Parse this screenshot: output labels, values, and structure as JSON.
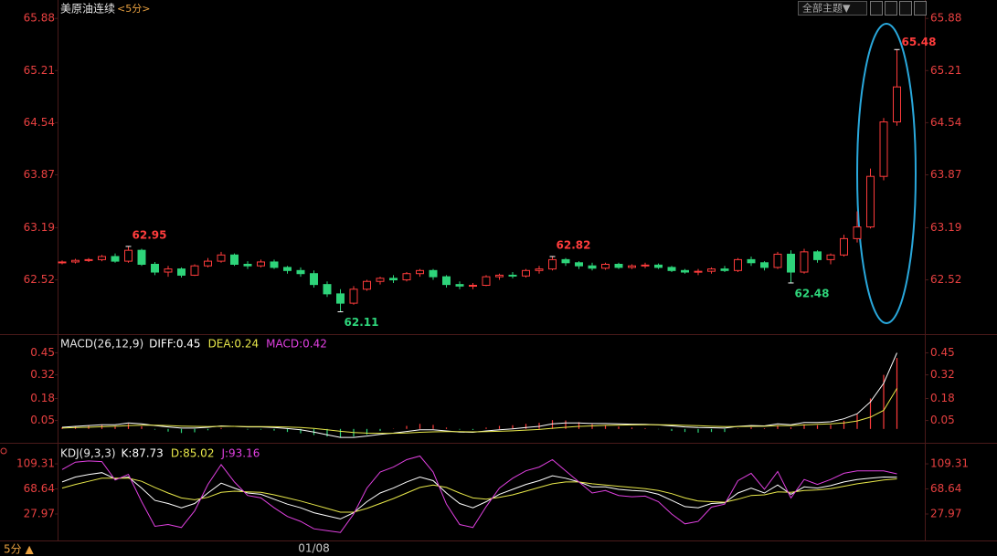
{
  "header": {
    "title": "美原油连续",
    "period": "<5分>",
    "theme_button": "全部主题▼",
    "footer_period": "5分 ▲"
  },
  "chart_data": [
    {
      "type": "candlestick",
      "up_color": "#ff3c3c",
      "down_color": "#2ed47a",
      "categories": [
        null,
        null,
        null,
        null,
        null,
        null,
        null,
        null,
        null,
        null,
        null,
        null,
        null,
        null,
        null,
        null,
        null,
        null,
        null,
        "01/08",
        null,
        null,
        null,
        null,
        null,
        null,
        null,
        null,
        null,
        null,
        null,
        null,
        null,
        null,
        null,
        null,
        null,
        null,
        null,
        null,
        null,
        null,
        null,
        null,
        null,
        null,
        null,
        null,
        null,
        null,
        null,
        null,
        null,
        null,
        null,
        null,
        null,
        null,
        null,
        null,
        null,
        null,
        null,
        null
      ],
      "open": [
        62.74,
        62.75,
        62.77,
        62.78,
        62.82,
        62.76,
        62.9,
        62.72,
        62.62,
        62.66,
        62.58,
        62.7,
        62.76,
        62.84,
        62.72,
        62.7,
        62.75,
        62.68,
        62.64,
        62.6,
        62.46,
        62.34,
        62.22,
        62.4,
        62.5,
        62.54,
        62.52,
        62.6,
        62.64,
        62.56,
        62.46,
        62.44,
        62.45,
        62.56,
        62.58,
        62.57,
        62.64,
        62.66,
        62.78,
        62.74,
        62.7,
        62.67,
        62.72,
        62.68,
        62.7,
        62.71,
        62.68,
        62.64,
        62.62,
        62.63,
        62.66,
        62.64,
        62.78,
        62.74,
        62.68,
        62.85,
        62.62,
        62.88,
        62.78,
        62.84,
        63.05,
        63.2,
        63.85,
        64.55
      ],
      "high": [
        62.77,
        62.79,
        62.8,
        62.84,
        62.86,
        62.95,
        62.92,
        62.75,
        62.7,
        62.68,
        62.72,
        62.8,
        62.88,
        62.86,
        62.76,
        62.78,
        62.78,
        62.7,
        62.68,
        62.64,
        62.5,
        62.4,
        62.44,
        62.52,
        62.56,
        62.58,
        62.62,
        62.66,
        62.66,
        62.58,
        62.5,
        62.48,
        62.58,
        62.6,
        62.62,
        62.66,
        62.7,
        62.82,
        62.8,
        62.76,
        62.74,
        62.74,
        62.74,
        62.72,
        62.74,
        62.73,
        62.7,
        62.66,
        62.66,
        62.68,
        62.7,
        62.8,
        62.82,
        62.76,
        62.88,
        62.9,
        62.92,
        62.9,
        62.86,
        63.1,
        63.4,
        63.95,
        64.6,
        65.48
      ],
      "low": [
        62.72,
        62.73,
        62.75,
        62.76,
        62.74,
        62.74,
        62.7,
        62.58,
        62.56,
        62.55,
        62.57,
        62.68,
        62.74,
        62.7,
        62.66,
        62.68,
        62.66,
        62.6,
        62.56,
        62.42,
        62.3,
        62.11,
        62.2,
        62.38,
        62.46,
        62.48,
        62.5,
        62.56,
        62.52,
        62.42,
        62.4,
        62.4,
        62.44,
        62.52,
        62.54,
        62.55,
        62.6,
        62.64,
        62.7,
        62.66,
        62.64,
        62.65,
        62.66,
        62.66,
        62.67,
        62.66,
        62.62,
        62.6,
        62.58,
        62.6,
        62.62,
        62.62,
        62.7,
        62.64,
        62.66,
        62.48,
        62.6,
        62.74,
        62.72,
        62.82,
        63.0,
        63.18,
        63.8,
        64.5
      ],
      "close": [
        62.75,
        62.77,
        62.78,
        62.82,
        62.76,
        62.9,
        62.72,
        62.62,
        62.66,
        62.58,
        62.7,
        62.76,
        62.84,
        62.72,
        62.7,
        62.75,
        62.68,
        62.64,
        62.6,
        62.46,
        62.34,
        62.22,
        62.4,
        62.5,
        62.54,
        62.52,
        62.6,
        62.64,
        62.56,
        62.46,
        62.44,
        62.45,
        62.56,
        62.58,
        62.57,
        62.64,
        62.66,
        62.78,
        62.74,
        62.7,
        62.67,
        62.72,
        62.68,
        62.7,
        62.71,
        62.68,
        62.64,
        62.62,
        62.63,
        62.66,
        62.64,
        62.78,
        62.74,
        62.68,
        62.85,
        62.62,
        62.88,
        62.78,
        62.84,
        63.05,
        63.2,
        63.85,
        64.55,
        65.0
      ],
      "ylim": [
        61.834,
        66.117
      ],
      "yticks": [
        65.88,
        65.21,
        64.54,
        63.87,
        63.19,
        62.52
      ],
      "grid": false
    },
    {
      "type": "macd",
      "title": "MACD(26,12,9)",
      "up_color": "#ff3c3c",
      "down_color": "#2ed47a",
      "series": [
        {
          "label": "DIFF:0.45",
          "color": "#ffffff",
          "style": "line",
          "values": [
            0.01,
            0.015,
            0.02,
            0.025,
            0.025,
            0.035,
            0.03,
            0.02,
            0.012,
            0.005,
            0.005,
            0.01,
            0.018,
            0.015,
            0.012,
            0.012,
            0.008,
            0.002,
            -0.005,
            -0.018,
            -0.035,
            -0.05,
            -0.05,
            -0.042,
            -0.032,
            -0.025,
            -0.015,
            -0.005,
            -0.005,
            -0.012,
            -0.018,
            -0.02,
            -0.012,
            -0.005,
            0.0,
            0.008,
            0.015,
            0.03,
            0.035,
            0.035,
            0.032,
            0.032,
            0.03,
            0.028,
            0.027,
            0.024,
            0.018,
            0.012,
            0.008,
            0.007,
            0.005,
            0.015,
            0.02,
            0.018,
            0.03,
            0.025,
            0.038,
            0.038,
            0.042,
            0.06,
            0.09,
            0.16,
            0.27,
            0.45
          ]
        },
        {
          "label": "DEA:0.24",
          "color": "#e8e84a",
          "style": "line",
          "values": [
            0.005,
            0.008,
            0.01,
            0.013,
            0.016,
            0.02,
            0.022,
            0.022,
            0.02,
            0.017,
            0.015,
            0.014,
            0.015,
            0.015,
            0.014,
            0.014,
            0.013,
            0.011,
            0.008,
            0.003,
            -0.005,
            -0.014,
            -0.021,
            -0.025,
            -0.026,
            -0.026,
            -0.024,
            -0.02,
            -0.017,
            -0.016,
            -0.016,
            -0.017,
            -0.016,
            -0.014,
            -0.011,
            -0.007,
            -0.003,
            0.004,
            0.01,
            0.015,
            0.018,
            0.021,
            0.023,
            0.024,
            0.025,
            0.025,
            0.024,
            0.021,
            0.019,
            0.016,
            0.014,
            0.014,
            0.015,
            0.016,
            0.019,
            0.02,
            0.024,
            0.027,
            0.03,
            0.036,
            0.047,
            0.07,
            0.11,
            0.24
          ]
        },
        {
          "label": "MACD:0.42",
          "color": "#e040e0",
          "style": "bar",
          "values": [
            0.01,
            0.014,
            0.02,
            0.024,
            0.018,
            0.03,
            0.016,
            -0.004,
            -0.016,
            -0.024,
            -0.02,
            -0.008,
            0.006,
            0.0,
            -0.004,
            -0.004,
            -0.01,
            -0.018,
            -0.026,
            -0.036,
            -0.045,
            -0.05,
            -0.045,
            -0.034,
            -0.012,
            0.002,
            0.018,
            0.03,
            0.024,
            0.008,
            -0.004,
            -0.006,
            0.008,
            0.018,
            0.022,
            0.03,
            0.036,
            0.052,
            0.05,
            0.04,
            0.028,
            0.022,
            0.014,
            0.008,
            0.004,
            -0.002,
            -0.012,
            -0.018,
            -0.022,
            -0.018,
            -0.018,
            0.002,
            0.01,
            0.004,
            0.022,
            0.01,
            0.028,
            0.022,
            0.024,
            0.048,
            0.086,
            0.18,
            0.32,
            0.42
          ]
        }
      ],
      "ylim": [
        -0.055,
        0.55
      ],
      "yticks": [
        0.45,
        0.32,
        0.18,
        0.05
      ]
    },
    {
      "type": "line",
      "title": "KDJ(9,3,3)",
      "series": [
        {
          "label": "K:87.73",
          "color": "#ffffff",
          "values": [
            80,
            88,
            92,
            95,
            85,
            88,
            70,
            50,
            45,
            38,
            45,
            62,
            78,
            70,
            62,
            60,
            52,
            44,
            38,
            30,
            25,
            20,
            30,
            48,
            62,
            70,
            80,
            88,
            82,
            62,
            45,
            38,
            48,
            60,
            68,
            76,
            82,
            90,
            86,
            80,
            72,
            72,
            68,
            66,
            65,
            60,
            50,
            40,
            38,
            45,
            46,
            62,
            70,
            62,
            75,
            60,
            72,
            70,
            74,
            80,
            84,
            86,
            88,
            87.73
          ]
        },
        {
          "label": "D:85.02",
          "color": "#e8e84a",
          "values": [
            70,
            76,
            81,
            86,
            86,
            86,
            81,
            71,
            62,
            54,
            51,
            55,
            63,
            65,
            64,
            63,
            59,
            54,
            49,
            43,
            37,
            31,
            31,
            37,
            45,
            53,
            62,
            71,
            75,
            71,
            62,
            54,
            52,
            55,
            59,
            65,
            71,
            77,
            80,
            80,
            77,
            75,
            73,
            71,
            69,
            66,
            61,
            54,
            49,
            48,
            47,
            52,
            58,
            59,
            64,
            63,
            66,
            67,
            69,
            73,
            77,
            80,
            83,
            85.02
          ]
        },
        {
          "label": "J:93.16",
          "color": "#e040e0",
          "values": [
            100,
            112,
            114,
            113,
            83,
            92,
            48,
            8,
            11,
            6,
            33,
            76,
            108,
            80,
            58,
            54,
            38,
            24,
            16,
            4,
            1,
            -2,
            28,
            70,
            96,
            104,
            116,
            122,
            96,
            44,
            11,
            6,
            40,
            70,
            86,
            98,
            104,
            116,
            98,
            80,
            62,
            66,
            58,
            56,
            57,
            48,
            28,
            12,
            16,
            39,
            44,
            82,
            94,
            68,
            97,
            54,
            84,
            76,
            84,
            94,
            98,
            98,
            98,
            93.16
          ]
        }
      ],
      "ylim": [
        -12,
        139
      ],
      "yticks": [
        109.31,
        68.64,
        27.97
      ]
    }
  ]
}
